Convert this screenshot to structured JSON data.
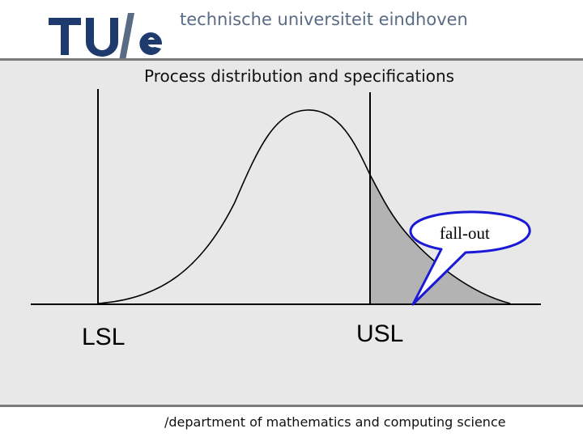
{
  "header": {
    "logo_text": "TU/e",
    "university_name": "technische universiteit eindhoven",
    "brand_color": "#1f3a6d",
    "subtitle_color": "#5a6b84"
  },
  "slide": {
    "title": "Process distribution and specifications"
  },
  "diagram": {
    "curve": "normal distribution",
    "shaded_region": "tail beyond USL",
    "shade_color": "#b3b3b3",
    "callout_color": "#1a1ad6",
    "lsl_label": "LSL",
    "usl_label": "USL",
    "callout_text": "fall-out"
  },
  "footer": {
    "department": "/department of mathematics and computing science"
  }
}
